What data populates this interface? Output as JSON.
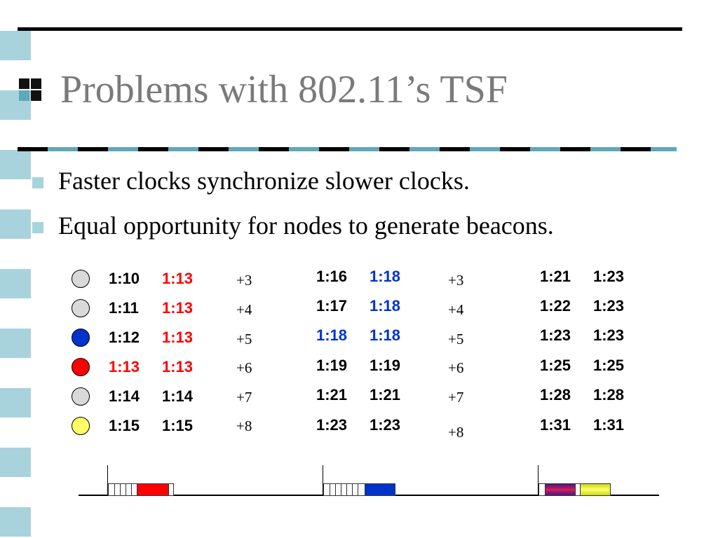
{
  "slide": {
    "title": "Problems with 802.11’s TSF",
    "bullets": [
      "Faster clocks synchronize slower clocks.",
      "Equal opportunity for nodes to generate beacons."
    ]
  },
  "colors": {
    "stripe": "#a8d3dd",
    "title": "#7a7a7a",
    "highlight_red": "#ff0000",
    "highlight_blue": "#0033cc",
    "node_gray": "#d9d9d9",
    "node_blue": "#0033cc",
    "node_red": "#ff0000",
    "node_yellow": "#ffff66",
    "beacon_red": "#ff0000",
    "beacon_blue": "#0033cc",
    "beacon_yellow": "#d4e21a"
  },
  "nodes": [
    "gray",
    "gray",
    "blue",
    "red",
    "gray",
    "yellow"
  ],
  "round1": {
    "local": [
      "1:10",
      "1:11",
      "1:12",
      "1:13",
      "1:14",
      "1:15"
    ],
    "synced": [
      "1:13",
      "1:13",
      "1:13",
      "1:13",
      "1:14",
      "1:15"
    ],
    "drift": [
      "+3",
      "+4",
      "+5",
      "+6",
      "+7",
      "+8"
    ]
  },
  "round2": {
    "local": [
      "1:16",
      "1:17",
      "1:18",
      "1:19",
      "1:21",
      "1:23"
    ],
    "synced": [
      "1:18",
      "1:18",
      "1:18",
      "1:19",
      "1:21",
      "1:23"
    ],
    "drift": [
      "+3",
      "+4",
      "+5",
      "+6",
      "+7",
      "+8"
    ]
  },
  "round3": {
    "local": [
      "1:21",
      "1:22",
      "1:23",
      "1:25",
      "1:28",
      "1:31"
    ],
    "synced": [
      "1:23",
      "1:23",
      "1:23",
      "1:25",
      "1:28",
      "1:31"
    ]
  }
}
